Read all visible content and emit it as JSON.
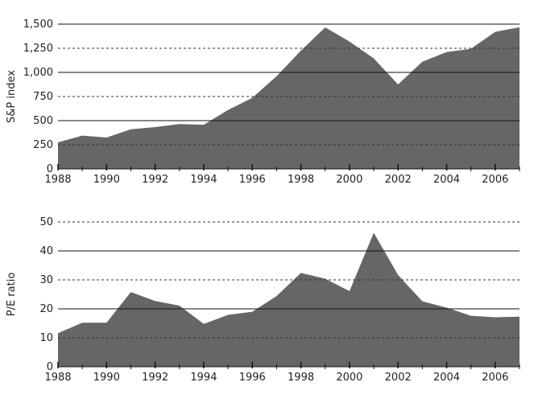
{
  "chart_data": [
    {
      "type": "area",
      "title": "",
      "xlabel": "",
      "ylabel": "S&P index",
      "x": [
        1988,
        1989,
        1990,
        1991,
        1992,
        1993,
        1994,
        1995,
        1996,
        1997,
        1998,
        1999,
        2000,
        2001,
        2002,
        2003,
        2004,
        2005,
        2006,
        2007
      ],
      "values": [
        275,
        345,
        325,
        410,
        433,
        465,
        457,
        610,
        736,
        960,
        1225,
        1467,
        1320,
        1145,
        875,
        1110,
        1210,
        1245,
        1420,
        1468
      ],
      "xlim": [
        1988,
        2007
      ],
      "ylim": [
        0,
        1500
      ],
      "yticks": [
        0,
        250,
        500,
        750,
        1000,
        1250,
        1500
      ],
      "ytick_labels": [
        "0",
        "250",
        "500",
        "750",
        "1,000",
        "1,250",
        "1,500"
      ],
      "solid_grid": [
        500,
        1000,
        1500
      ],
      "dashed_grid": [
        250,
        750,
        1250
      ],
      "xtick_labels": [
        "1988",
        "1990",
        "1992",
        "1994",
        "1996",
        "1998",
        "2000",
        "2002",
        "2004",
        "2006"
      ],
      "fill_color": "#666666",
      "grid": true
    },
    {
      "type": "area",
      "title": "",
      "xlabel": "",
      "ylabel": "P/E ratio",
      "x": [
        1988,
        1989,
        1990,
        1991,
        1992,
        1993,
        1994,
        1995,
        1996,
        1997,
        1998,
        1999,
        2000,
        2001,
        2002,
        2003,
        2004,
        2005,
        2006,
        2007
      ],
      "values": [
        11.6,
        15.2,
        15.2,
        25.8,
        22.7,
        21.1,
        14.8,
        17.9,
        19.0,
        24.4,
        32.4,
        30.4,
        26.1,
        46.3,
        31.7,
        22.6,
        20.4,
        17.6,
        17.1,
        17.3
      ],
      "xlim": [
        1988,
        2007
      ],
      "ylim": [
        0,
        50
      ],
      "yticks": [
        0,
        10,
        20,
        30,
        40,
        50
      ],
      "ytick_labels": [
        "0",
        "10",
        "20",
        "30",
        "40",
        "50"
      ],
      "solid_grid": [
        20,
        40
      ],
      "dashed_grid": [
        10,
        30,
        50
      ],
      "xtick_labels": [
        "1988",
        "1990",
        "1992",
        "1994",
        "1996",
        "1998",
        "2000",
        "2002",
        "2004",
        "2006"
      ],
      "fill_color": "#666666",
      "grid": true
    }
  ]
}
